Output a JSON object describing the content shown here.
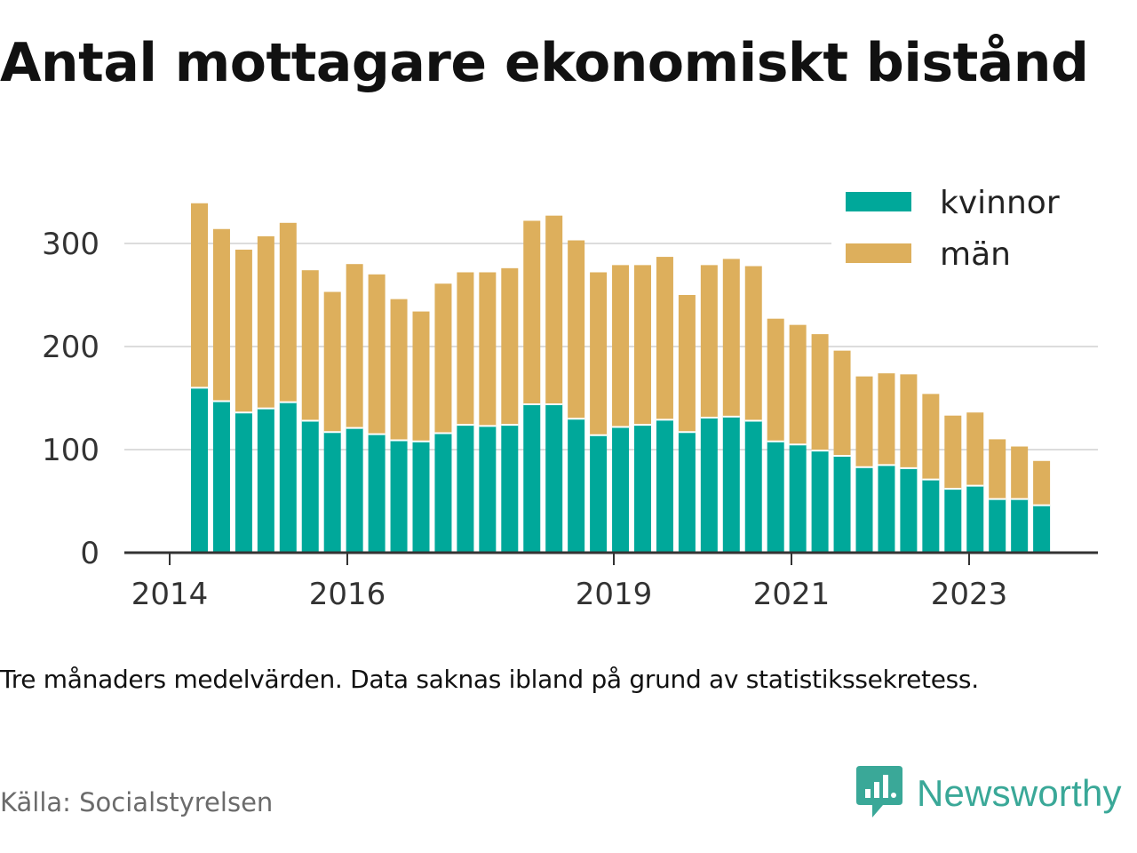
{
  "title": "Antal mottagare ekonomiskt bistånd",
  "note": "Tre månaders medelvärden. Data saknas ibland på grund av statistikssekretess.",
  "source": "Källa: Socialstyrelsen",
  "brand": {
    "name": "Newsworthy",
    "color": "#3aa898"
  },
  "chart_data": {
    "type": "bar",
    "stacked": true,
    "x_tick_labels": [
      "2014",
      "2016",
      "2019",
      "2021",
      "2023"
    ],
    "y_ticks": [
      0,
      100,
      200,
      300
    ],
    "ylim": [
      0,
      340
    ],
    "grid": true,
    "legend_position": "top-right",
    "series": [
      {
        "name": "kvinnor",
        "color": "#00a89a",
        "values": [
          160,
          147,
          136,
          140,
          146,
          128,
          117,
          121,
          115,
          109,
          108,
          116,
          124,
          123,
          124,
          144,
          144,
          130,
          114,
          122,
          124,
          129,
          117,
          131,
          132,
          128,
          108,
          105,
          99,
          94,
          83,
          85,
          82,
          71,
          62,
          65,
          52,
          52,
          46
        ]
      },
      {
        "name": "män",
        "color": "#ddaf5c",
        "values": [
          179,
          167,
          158,
          167,
          174,
          146,
          136,
          159,
          155,
          137,
          126,
          145,
          148,
          149,
          152,
          178,
          183,
          173,
          158,
          157,
          155,
          158,
          133,
          148,
          153,
          150,
          119,
          116,
          113,
          102,
          88,
          89,
          91,
          83,
          71,
          71,
          58,
          51,
          43
        ]
      }
    ]
  }
}
